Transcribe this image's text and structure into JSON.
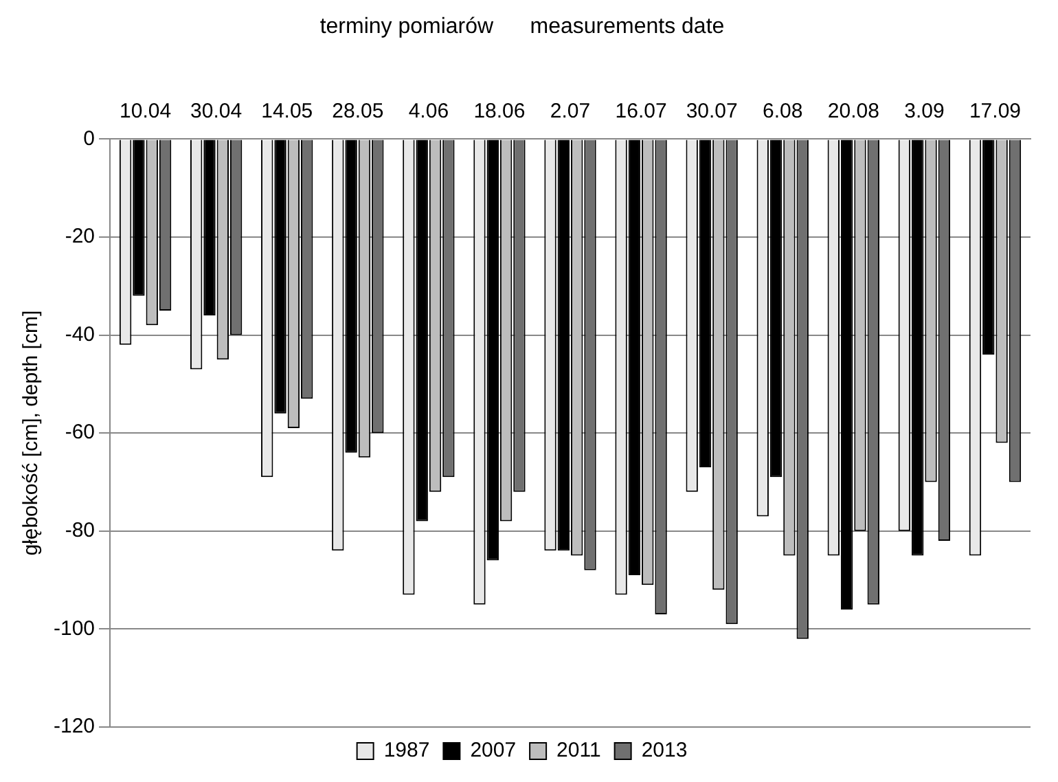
{
  "chart_data": {
    "type": "bar",
    "title": "terminy pomiarów      measurements date",
    "ylabel": "głębokość [cm], depth [cm]",
    "categories": [
      "10.04",
      "30.04",
      "14.05",
      "28.05",
      "4.06",
      "18.06",
      "2.07",
      "16.07",
      "30.07",
      "6.08",
      "20.08",
      "3.09",
      "17.09"
    ],
    "series": [
      {
        "name": "1987",
        "color": "#e8e8e8",
        "values": [
          -42,
          -47,
          -69,
          -84,
          -93,
          -95,
          -84,
          -93,
          -72,
          -77,
          -85,
          -80,
          -85
        ]
      },
      {
        "name": "2007",
        "color": "#000000",
        "values": [
          -32,
          -36,
          -56,
          -64,
          -78,
          -86,
          -84,
          -89,
          -67,
          -69,
          -96,
          -85,
          -44
        ]
      },
      {
        "name": "2011",
        "color": "#bdbdbd",
        "values": [
          -38,
          -45,
          -59,
          -65,
          -72,
          -78,
          -85,
          -91,
          -92,
          -85,
          -80,
          -70,
          -62
        ]
      },
      {
        "name": "2013",
        "color": "#707070",
        "values": [
          -35,
          -40,
          -53,
          -60,
          -69,
          -72,
          -88,
          -97,
          -99,
          -102,
          -95,
          -82,
          -70
        ]
      }
    ],
    "ylim": [
      -120,
      0
    ],
    "yticks": [
      -120,
      -100,
      -80,
      -60,
      -40,
      -20,
      0
    ],
    "grid": "y",
    "legend": "bottom"
  }
}
